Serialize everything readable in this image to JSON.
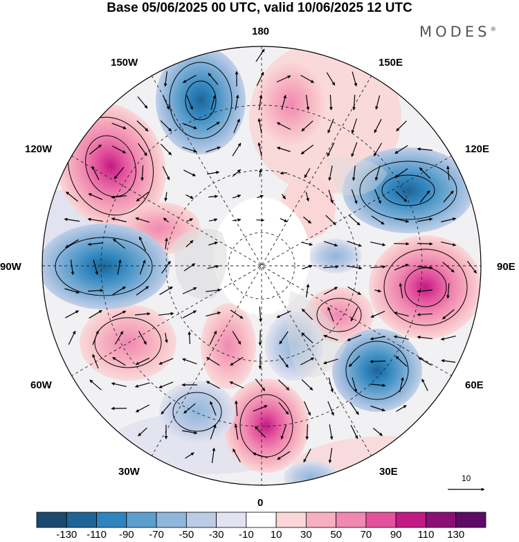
{
  "title": "Base 05/06/2025 00 UTC, valid 10/06/2025 12 UTC",
  "brand": "MODES",
  "brand_mark": "®",
  "longitude_labels": {
    "n180": "180",
    "e150": "150E",
    "e120": "120E",
    "e90": "90E",
    "e60": "60E",
    "e30": "30E",
    "n0": "0",
    "w30": "30W",
    "w60": "60W",
    "w90": "90W",
    "w120": "120W",
    "w150": "150W"
  },
  "colorbar": {
    "ticks": [
      "-130",
      "-110",
      "-90",
      "-70",
      "-50",
      "-30",
      "-10",
      "10",
      "30",
      "50",
      "70",
      "90",
      "110",
      "130"
    ],
    "colors": [
      "#1a4a6e",
      "#1f6496",
      "#2e84bd",
      "#5c9ecc",
      "#8fb6db",
      "#bccbe6",
      "#e2e2f0",
      "#ffffff",
      "#fad6d6",
      "#f7b0bf",
      "#f088b1",
      "#e3529d",
      "#c21a84",
      "#8c0f75",
      "#5e0a66"
    ]
  },
  "reference_vector": {
    "label": "10"
  },
  "colors": {
    "positive": "#e3529d",
    "negative": "#2e84bd",
    "land": "#dcdcdc"
  }
}
